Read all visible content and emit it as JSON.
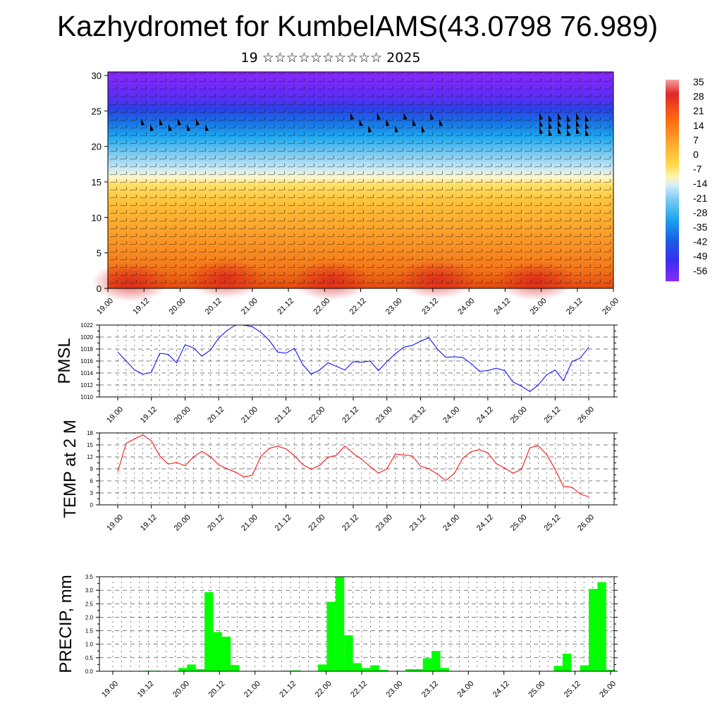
{
  "title": "Kazhydromet for KumbelAMS(43.0798 76.989)",
  "subtitle": "19 ☆☆☆☆☆☆☆☆☆☆ 2025",
  "chart_data": [
    {
      "type": "heatmap",
      "title": "",
      "description_value": "temperature cross-section with wind barbs",
      "x_ticks": [
        "19.00",
        "19.12",
        "20.00",
        "20.12",
        "21.00",
        "21.12",
        "22.00",
        "22.12",
        "23.00",
        "23.12",
        "24.00",
        "24.12",
        "25.00",
        "25.12",
        "26.00"
      ],
      "y_ticks": [
        0,
        5,
        10,
        15,
        20,
        25,
        30
      ],
      "ylim": [
        0,
        30.5
      ],
      "colorbar_ticks": [
        35,
        28,
        21,
        14,
        7,
        0,
        -7,
        -14,
        -21,
        -28,
        -35,
        -42,
        -49,
        -56
      ],
      "colorbar_colors": [
        "#7a1aff",
        "#3a2af0",
        "#1e5ce6",
        "#1ea0f0",
        "#7ed0f5",
        "#c8ecf8",
        "#fff5c0",
        "#ffe066",
        "#ffc233",
        "#ffa020",
        "#ff7a1a",
        "#f04a10",
        "#d81e1e",
        "#f09090"
      ],
      "level_profile_celsius_approx": [
        [
          0,
          16
        ],
        [
          5,
          8
        ],
        [
          10,
          2
        ],
        [
          14,
          -5
        ],
        [
          15,
          -10
        ],
        [
          18,
          -30
        ],
        [
          22,
          -45
        ],
        [
          25,
          -55
        ],
        [
          30,
          -58
        ]
      ]
    },
    {
      "type": "line",
      "ylabel": "PMSL",
      "ylim": [
        1010,
        1022
      ],
      "y_ticks": [
        1010,
        1012,
        1014,
        1016,
        1018,
        1020,
        1022
      ],
      "x_ticks": [
        "19.00",
        "19.12",
        "20.00",
        "20.12",
        "21.00",
        "21.12",
        "22.00",
        "22.12",
        "23.00",
        "23.12",
        "24.00",
        "24.12",
        "25.00",
        "25.12",
        "26.00"
      ],
      "color": "#0000ff",
      "values": [
        1017.5,
        1016.0,
        1014.5,
        1013.8,
        1014.1,
        1017.3,
        1017.1,
        1015.7,
        1018.7,
        1018.2,
        1016.8,
        1017.8,
        1019.8,
        1021.1,
        1022.0,
        1022.0,
        1021.7,
        1020.8,
        1019.5,
        1017.5,
        1017.3,
        1018.1,
        1015.4,
        1013.8,
        1014.5,
        1015.7,
        1015.1,
        1014.5,
        1015.9,
        1015.8,
        1016.0,
        1014.4,
        1015.9,
        1017.2,
        1018.3,
        1018.6,
        1019.3,
        1019.9,
        1018.0,
        1016.6,
        1016.7,
        1016.6,
        1015.6,
        1014.3,
        1014.4,
        1014.8,
        1014.4,
        1012.5,
        1011.8,
        1010.9,
        1012.0,
        1013.7,
        1014.5,
        1012.7,
        1015.9,
        1016.5,
        1018.3
      ]
    },
    {
      "type": "line",
      "ylabel": "TEMP at 2 M",
      "ylim": [
        0,
        18
      ],
      "y_ticks": [
        0,
        3,
        6,
        9,
        12,
        15,
        18
      ],
      "x_ticks": [
        "19.00",
        "19.12",
        "20.00",
        "20.12",
        "21.00",
        "21.12",
        "22.00",
        "22.12",
        "23.00",
        "23.12",
        "24.00",
        "24.12",
        "25.00",
        "25.12",
        "26.00"
      ],
      "color": "#ff0000",
      "values": [
        8.3,
        15.4,
        16.5,
        17.5,
        16.0,
        12.2,
        10.2,
        10.6,
        9.8,
        12.0,
        13.4,
        12.1,
        10.0,
        9.0,
        8.2,
        7.0,
        7.4,
        12.1,
        14.1,
        14.7,
        14.0,
        12.3,
        10.1,
        8.9,
        9.9,
        11.9,
        12.4,
        14.7,
        12.9,
        11.4,
        9.6,
        7.9,
        9.0,
        12.7,
        12.5,
        12.3,
        9.7,
        9.0,
        7.7,
        6.1,
        7.8,
        11.6,
        13.3,
        13.8,
        13.0,
        10.3,
        9.2,
        7.9,
        8.9,
        14.3,
        14.8,
        12.6,
        8.9,
        4.6,
        4.4,
        2.7,
        2.0
      ]
    },
    {
      "type": "bar",
      "ylabel": "PRECIP, mm",
      "ylim": [
        0,
        3.5
      ],
      "y_ticks": [
        "0.0",
        "0.5",
        "1.0",
        "1.5",
        "2.0",
        "2.5",
        "3.0",
        "3.5"
      ],
      "x_ticks": [
        "19.00",
        "19.12",
        "20.00",
        "20.12",
        "21.00",
        "21.12",
        "22.00",
        "22.12",
        "23.00",
        "23.12",
        "24.00",
        "24.12",
        "25.00",
        "25.12",
        "26.00"
      ],
      "color": "#00ff00",
      "values": [
        0,
        0,
        0,
        0,
        0.02,
        0.02,
        0,
        0,
        0.12,
        0.25,
        0.08,
        2.93,
        1.45,
        1.28,
        0.23,
        0,
        0,
        0,
        0,
        0,
        0.02,
        0.03,
        0,
        0,
        0.25,
        2.57,
        3.5,
        1.33,
        0.3,
        0.12,
        0.22,
        0.05,
        0,
        0,
        0.08,
        0.08,
        0.48,
        0.75,
        0.12,
        0,
        0,
        0,
        0,
        0,
        0,
        0,
        0,
        0,
        0,
        0,
        0,
        0.2,
        0.65,
        0,
        0.22,
        3.05,
        3.3,
        0.05
      ]
    }
  ]
}
